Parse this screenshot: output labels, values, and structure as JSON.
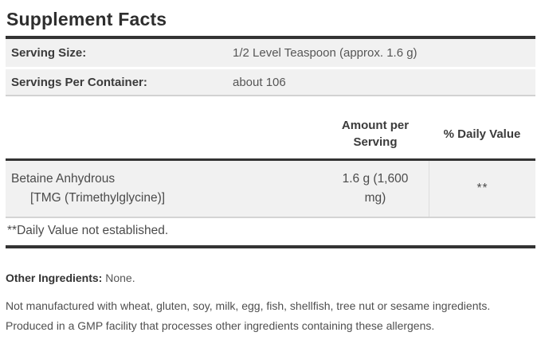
{
  "title": "Supplement Facts",
  "serving_info": {
    "rows": [
      {
        "label": "Serving Size:",
        "value": "1/2 Level Teaspoon (approx. 1.6 g)"
      },
      {
        "label": "Servings Per Container:",
        "value": "about 106"
      }
    ]
  },
  "nutrient_table": {
    "amount_header": "Amount per Serving",
    "daily_value_header": "% Daily Value",
    "rows": [
      {
        "name": "Betaine Anhydrous",
        "name_sub": "[TMG (Trimethylglycine)]",
        "amount": "1.6 g (1,600 mg)",
        "daily_value": "**"
      }
    ],
    "footnote": "**Daily Value not established."
  },
  "other_ingredients": {
    "label": "Other Ingredients:",
    "value": "None."
  },
  "allergen_note": {
    "lines": [
      "Not manufactured with wheat, gluten, soy, milk, egg, fish, shellfish, tree nut or sesame ingredients.",
      "Produced in a GMP facility that processes other ingredients containing these allergens."
    ]
  },
  "colors": {
    "divider_dark": "#333333",
    "row_background": "#f1f1f1",
    "border_light": "#d4d4d4",
    "text_dark": "#3b3b3b",
    "text_body": "#4f4f4f"
  }
}
